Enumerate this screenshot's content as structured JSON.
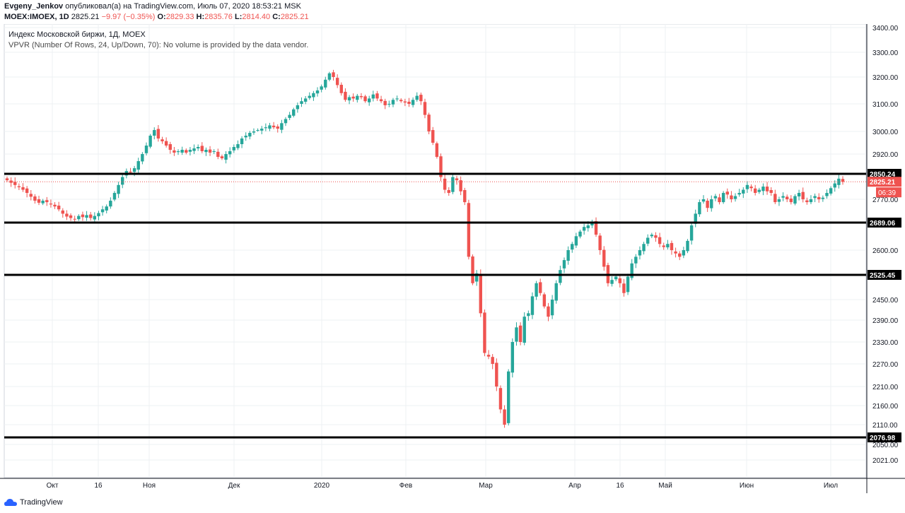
{
  "header": {
    "author": "Evgeny_Jenkov",
    "published_text": "опубликовал(а) на TradingView.com, Июль 07, 2020 18:53:21 MSK",
    "symbol": "MOEX:IMOEX, 1D",
    "last": "2825.21",
    "change": "−9.97 (−0.35%)",
    "o_label": "O:",
    "o_value": "2829.33",
    "h_label": "H:",
    "h_value": "2835.76",
    "l_label": "L:",
    "l_value": "2814.40",
    "c_label": "C:",
    "c_value": "2825.21"
  },
  "legend": {
    "title": "Индекс Московской биржи, 1Д, MOEX",
    "indicator": "VPVR (Number Of Rows, 24, Up/Down, 70): No volume is provided by the data vendor."
  },
  "footer": {
    "brand": "TradingView"
  },
  "colors": {
    "up": "#26a69a",
    "down": "#ef5350",
    "grid": "#eef0f3",
    "level": "#000000",
    "badge": "#ef5350"
  },
  "chart_data": {
    "type": "candlestick",
    "y_ticks": [
      3400,
      3300,
      3200,
      3100,
      3000,
      2920,
      2850,
      2770,
      2689,
      2600,
      2525,
      2450,
      2390,
      2330,
      2270,
      2210,
      2160,
      2110,
      2050,
      2021
    ],
    "y_tick_labels": [
      "3400.00",
      "3300.00",
      "3200.00",
      "3100.00",
      "3000.00",
      "2920.00",
      "2850.24",
      "2770.00",
      "2689.06",
      "2600.00",
      "2525.45",
      "2450.00",
      "2390.00",
      "2330.00",
      "2270.00",
      "2210.00",
      "2160.00",
      "2110.00",
      "2050.00",
      "2021.00"
    ],
    "x_labels": [
      "Окт",
      "16",
      "Ноя",
      "Дек",
      "2020",
      "Фев",
      "Мар",
      "Апр",
      "16",
      "Май",
      "Июн",
      "Июл"
    ],
    "levels": [
      {
        "value": 2850.24,
        "label": "2850.24"
      },
      {
        "value": 2689.06,
        "label": "2689.06"
      },
      {
        "value": 2525.45,
        "label": "2525.45"
      },
      {
        "value": 2076.98,
        "label": "2076.98"
      }
    ],
    "last_price": {
      "value": 2825.21,
      "label": "2825.21",
      "countdown": "06:39"
    },
    "grid": true,
    "closes": [
      2830,
      2822,
      2815,
      2808,
      2800,
      2790,
      2778,
      2765,
      2758,
      2765,
      2760,
      2752,
      2745,
      2735,
      2720,
      2710,
      2705,
      2700,
      2712,
      2708,
      2715,
      2705,
      2712,
      2722,
      2735,
      2745,
      2765,
      2790,
      2815,
      2840,
      2860,
      2855,
      2870,
      2895,
      2920,
      2950,
      2985,
      3005,
      2975,
      2965,
      2950,
      2935,
      2925,
      2930,
      2935,
      2925,
      2935,
      2940,
      2945,
      2930,
      2935,
      2925,
      2930,
      2910,
      2905,
      2920,
      2930,
      2945,
      2955,
      2975,
      2985,
      2995,
      3000,
      3005,
      3010,
      3015,
      3022,
      3015,
      3010,
      3030,
      3045,
      3060,
      3080,
      3095,
      3110,
      3120,
      3130,
      3140,
      3150,
      3165,
      3190,
      3215,
      3200,
      3170,
      3140,
      3115,
      3125,
      3120,
      3130,
      3125,
      3110,
      3120,
      3135,
      3120,
      3110,
      3095,
      3100,
      3115,
      3120,
      3110,
      3105,
      3100,
      3115,
      3130,
      3110,
      3060,
      3000,
      2960,
      2910,
      2840,
      2800,
      2790,
      2840,
      2830,
      2795,
      2760,
      2580,
      2500,
      2530,
      2410,
      2300,
      2290,
      2270,
      2210,
      2150,
      2110,
      2250,
      2330,
      2370,
      2330,
      2400,
      2410,
      2460,
      2500,
      2470,
      2430,
      2400,
      2450,
      2500,
      2540,
      2570,
      2600,
      2620,
      2645,
      2660,
      2675,
      2680,
      2690,
      2650,
      2600,
      2550,
      2500,
      2510,
      2520,
      2500,
      2470,
      2520,
      2560,
      2580,
      2600,
      2620,
      2640,
      2650,
      2640,
      2620,
      2610,
      2620,
      2600,
      2590,
      2580,
      2600,
      2630,
      2680,
      2720,
      2760,
      2770,
      2740,
      2770,
      2780,
      2760,
      2790,
      2785,
      2770,
      2780,
      2790,
      2800,
      2815,
      2805,
      2790,
      2800,
      2810,
      2795,
      2790,
      2760,
      2770,
      2780,
      2770,
      2760,
      2780,
      2790,
      2770,
      2760,
      2770,
      2780,
      2770,
      2775,
      2790,
      2805,
      2820,
      2835,
      2825
    ]
  }
}
